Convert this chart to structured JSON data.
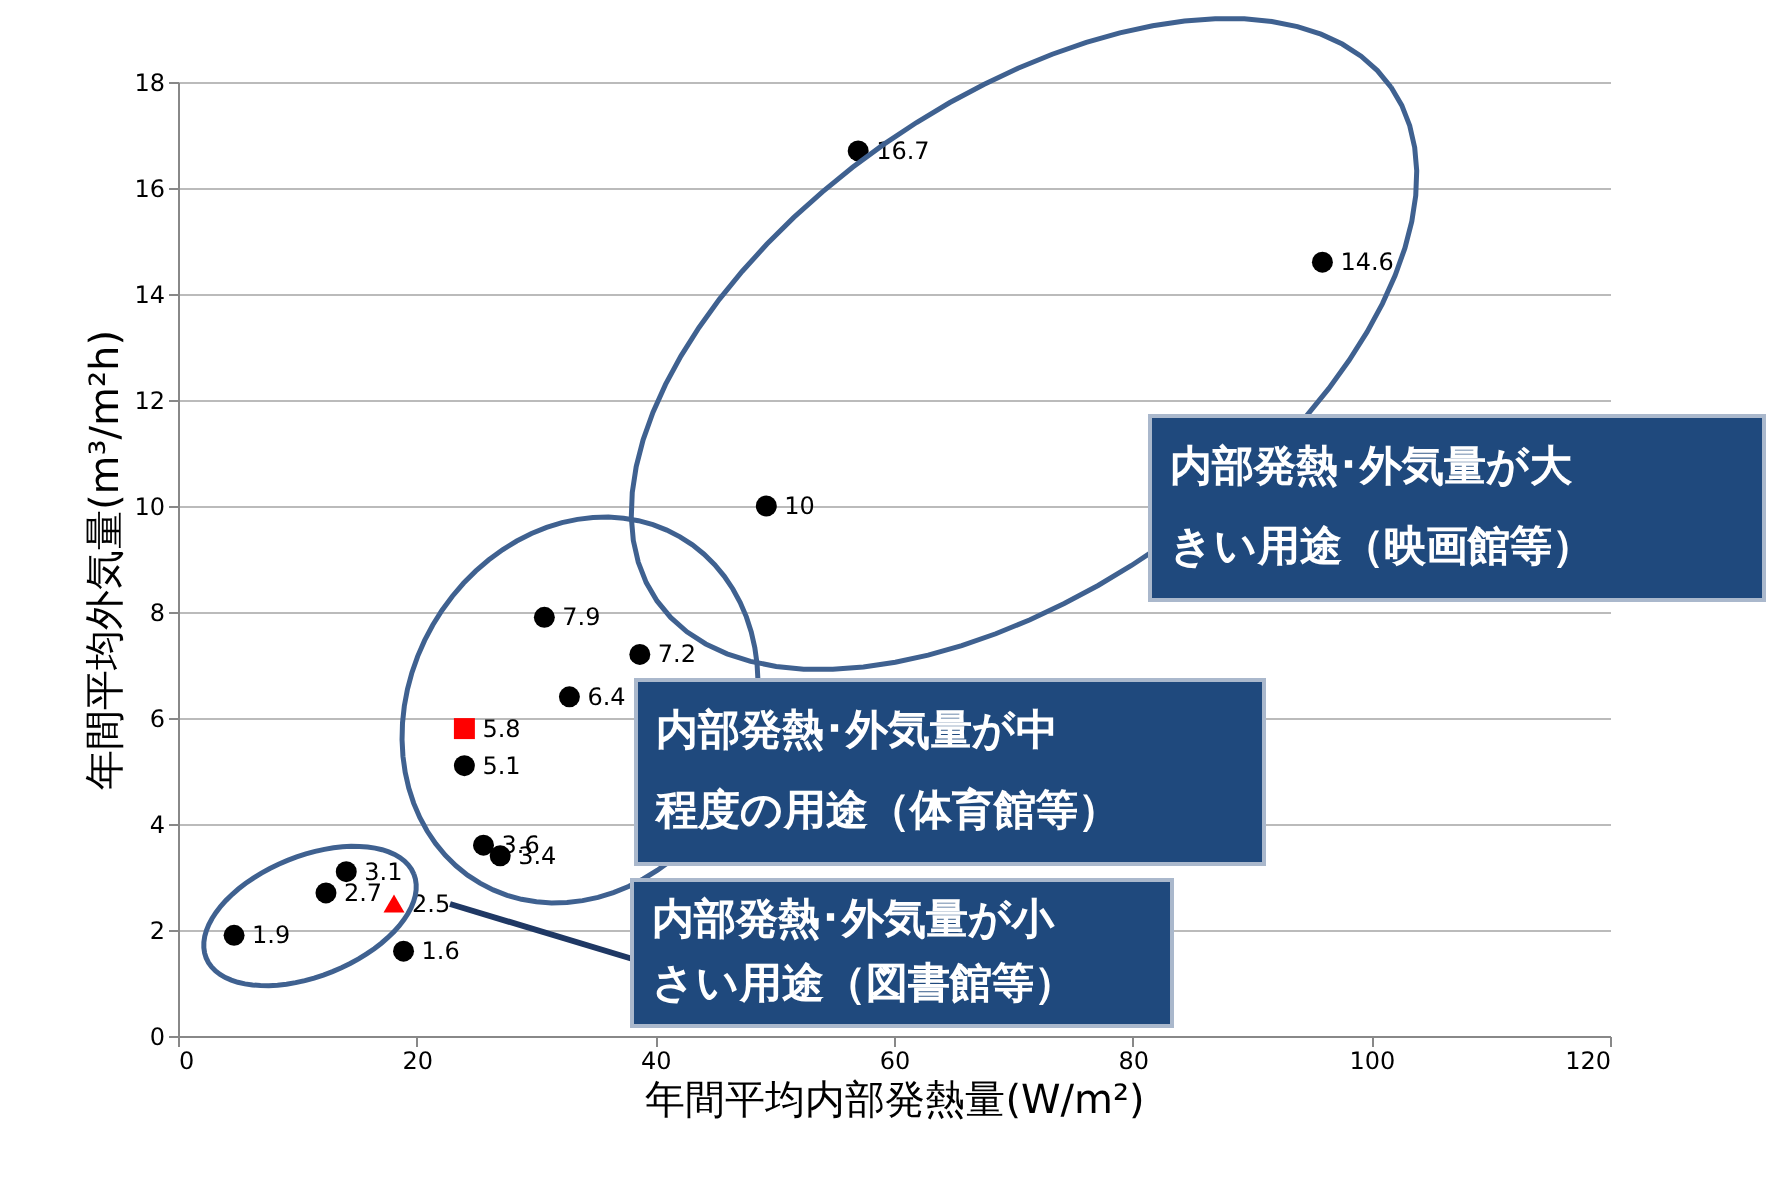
{
  "chart_data": {
    "type": "scatter",
    "xlabel": "年間平均内部発熱量(W/m²)",
    "ylabel": "年間平均外気量(m³/m²h)",
    "xlim": [
      0,
      120
    ],
    "xticks": [
      0,
      20,
      40,
      60,
      80,
      100,
      120
    ],
    "ylim": [
      0,
      18
    ],
    "yticks": [
      0,
      2,
      4,
      6,
      8,
      10,
      12,
      14,
      16,
      18
    ],
    "grid": "y",
    "data_labels": true,
    "series": [
      {
        "color": "#000000",
        "marker": "circle",
        "x": [
          4.7,
          12.4,
          14.1,
          18.9,
          25.6,
          27.0,
          24.0,
          32.8,
          30.7,
          38.7,
          49.3,
          57.0,
          95.9
        ],
        "values": [
          1.9,
          2.7,
          3.1,
          1.6,
          3.6,
          3.4,
          5.1,
          6.4,
          7.9,
          7.2,
          10,
          16.7,
          14.6
        ]
      },
      {
        "color": "#ff0000",
        "marker": "square",
        "x": [
          24.0
        ],
        "values": [
          5.8
        ]
      },
      {
        "color": "#ff0000",
        "marker": "triangle",
        "x": [
          18.1
        ],
        "values": [
          2.5
        ]
      }
    ],
    "annotations": [
      "内部発熱･外気量が大きい用途（映画館等）",
      "内部発熱･外気量が中程度の用途（体育館等）",
      "内部発熱･外気量が小さい用途（図書館等）"
    ]
  }
}
